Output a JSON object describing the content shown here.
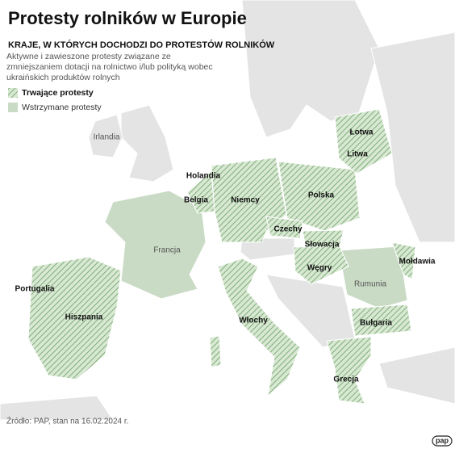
{
  "header": {
    "title": "Protesty rolników w Europie",
    "subtitle": "KRAJE, W KTÓRYCH DOCHODZI DO PROTESTÓW ROLNIKÓW",
    "description": "Aktywne i zawieszone protesty związane ze zmniejszaniem dotacji na rolnictwo i/lub polityką wobec ukraińskich produktów rolnych"
  },
  "legend": {
    "active": "Trwające protesty",
    "suspended": "Wstrzymane protesty"
  },
  "map": {
    "active_countries": [
      "Łotwa",
      "Litwa",
      "Holandia",
      "Belgia",
      "Niemcy",
      "Polska",
      "Czechy",
      "Słowacja",
      "Węgry",
      "Mołdawia",
      "Portugalia",
      "Hiszpania",
      "Włochy",
      "Bułgaria",
      "Grecja"
    ],
    "suspended_countries": [
      "Francja",
      "Rumunia"
    ],
    "other_countries": [
      "Irlandia"
    ]
  },
  "footer": {
    "source": "Źródło: PAP, stan na 16.02.2024 r.",
    "logo": "pap"
  }
}
